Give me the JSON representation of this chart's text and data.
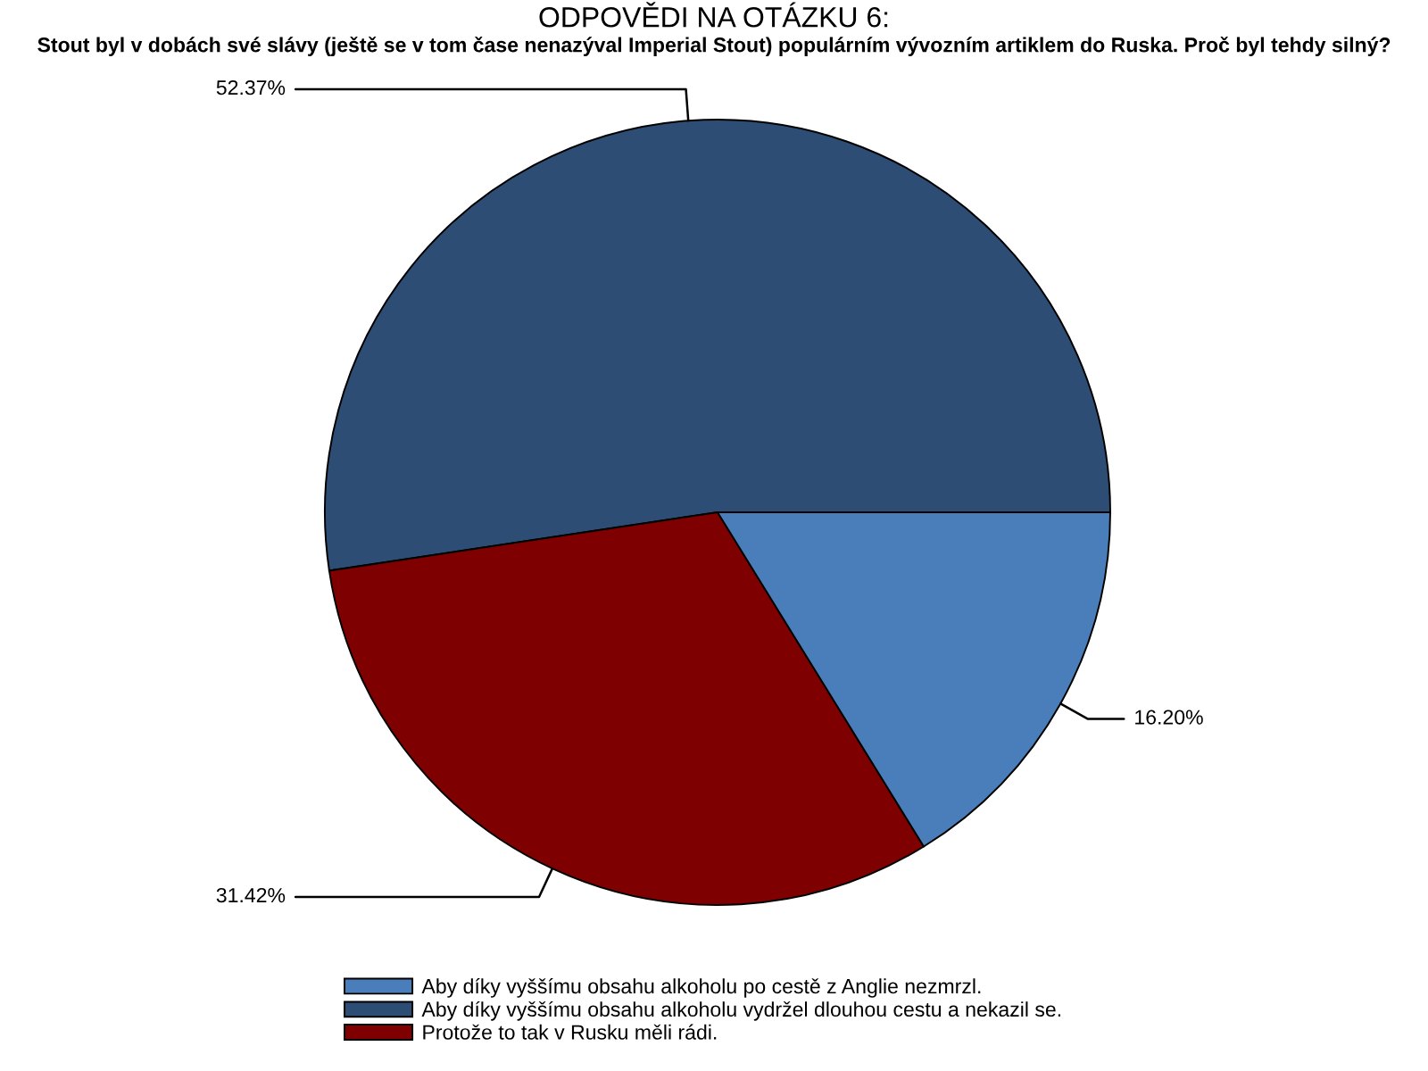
{
  "chart_data": {
    "type": "pie",
    "title": "ODPOVĚDI NA OTÁZKU 6:",
    "subtitle": "Stout byl v dobách své slávy (ještě se v tom čase nenazýval Imperial Stout) populárním vývozním artiklem do Ruska. Proč byl tehdy silný?",
    "categories": [
      "Aby díky vyššímu obsahu alkoholu po cestě z Anglie nezmrzl.",
      "Aby díky vyššímu obsahu alkoholu vydržel dlouhou cestu a nekazil se.",
      "Protože to tak v Rusku měli rádi."
    ],
    "values": [
      16.2,
      52.37,
      31.42
    ],
    "colors": [
      "#4a7ebb",
      "#2e4d74",
      "#7f0000"
    ],
    "value_labels": [
      "16.20%",
      "52.37%",
      "31.42%"
    ],
    "legend": "bottom"
  }
}
